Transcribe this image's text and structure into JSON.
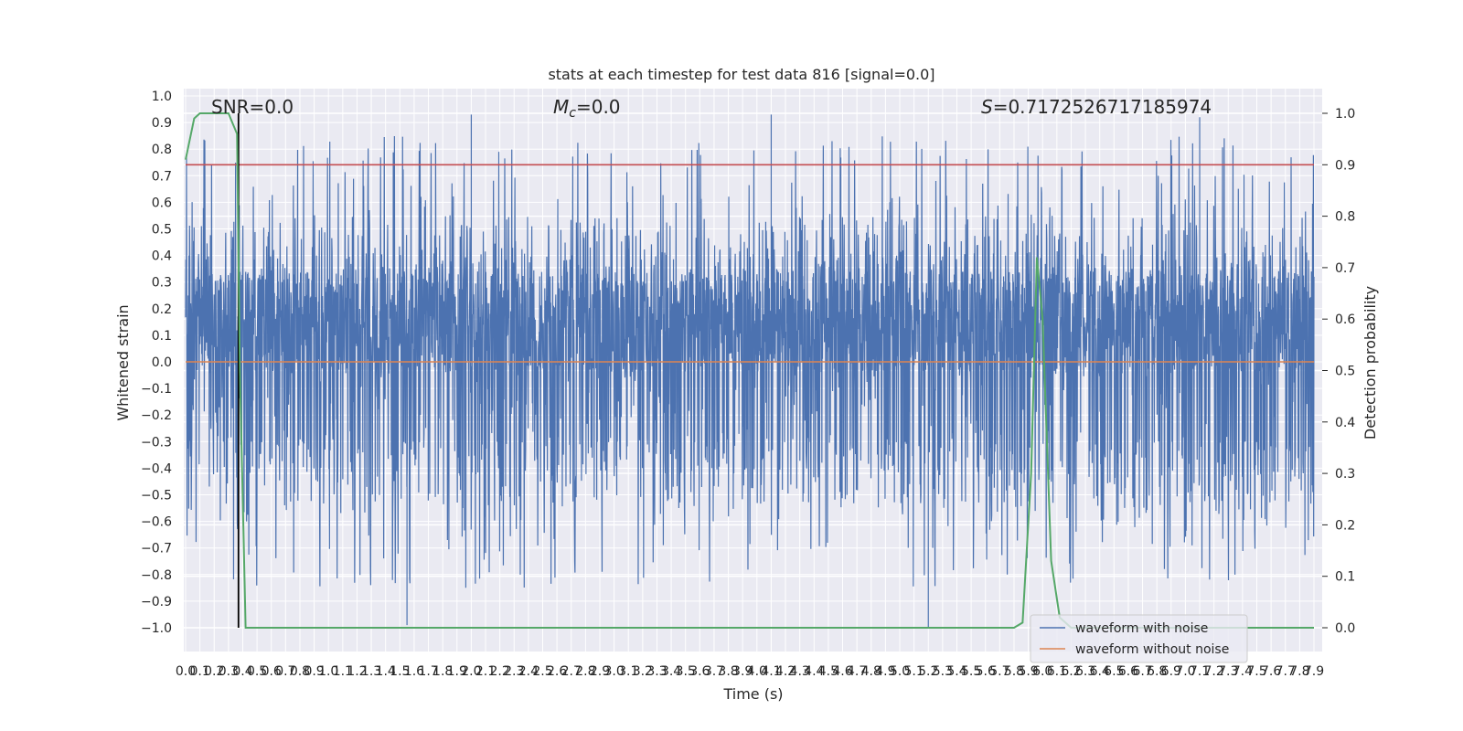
{
  "chart_data": {
    "type": "line",
    "title": "stats at each timestep for test data 816 [signal=0.0]",
    "xlabel": "Time (s)",
    "ylabel": "Whitened strain",
    "y2label": "Detection probability",
    "xlim": [
      0.0,
      7.9
    ],
    "ylim": [
      -1.0,
      1.0
    ],
    "y2lim": [
      0.0,
      1.0
    ],
    "x_ticks": [
      "0.0",
      "0.1",
      "0.2",
      "0.3",
      "0.4",
      "0.5",
      "0.6",
      "0.7",
      "0.8",
      "0.9",
      "1.0",
      "1.1",
      "1.2",
      "1.3",
      "1.4",
      "1.5",
      "1.6",
      "1.7",
      "1.8",
      "1.9",
      "2.0",
      "2.1",
      "2.2",
      "2.3",
      "2.4",
      "2.5",
      "2.6",
      "2.7",
      "2.8",
      "2.9",
      "3.0",
      "3.1",
      "3.2",
      "3.3",
      "3.4",
      "3.5",
      "3.6",
      "3.7",
      "3.8",
      "3.9",
      "4.0",
      "4.1",
      "4.2",
      "4.3",
      "4.4",
      "4.5",
      "4.6",
      "4.7",
      "4.8",
      "4.9",
      "5.0",
      "5.1",
      "5.2",
      "5.3",
      "5.4",
      "5.5",
      "5.6",
      "5.7",
      "5.8",
      "5.9",
      "6.0",
      "6.1",
      "6.2",
      "6.3",
      "6.4",
      "6.5",
      "6.6",
      "6.7",
      "6.8",
      "6.9",
      "7.0",
      "7.1",
      "7.2",
      "7.3",
      "7.4",
      "7.5",
      "7.6",
      "7.7",
      "7.8",
      "7.9"
    ],
    "y_ticks": [
      "1.0",
      "0.9",
      "0.8",
      "0.7",
      "0.6",
      "0.5",
      "0.4",
      "0.3",
      "0.2",
      "0.1",
      "0.0",
      "−0.1",
      "−0.2",
      "−0.3",
      "−0.4",
      "−0.5",
      "−0.6",
      "−0.7",
      "−0.8",
      "−0.9",
      "−1.0"
    ],
    "y2_ticks": [
      "1.0",
      "0.9",
      "0.8",
      "0.7",
      "0.6",
      "0.5",
      "0.4",
      "0.3",
      "0.2",
      "0.1",
      "0.0"
    ],
    "annotations": {
      "snr": "SNR=0.0",
      "mc_symbol": "M",
      "mc_sub": "c",
      "mc_value": "=0.0",
      "s_symbol": "S",
      "s_value": "=0.7172526717185974"
    },
    "legend": {
      "placement": "lower-right",
      "entries": [
        "waveform with noise",
        "waveform without noise"
      ]
    },
    "threshold_probability": 0.9,
    "vertical_marker_time": 0.37,
    "series": [
      {
        "name": "waveform with noise",
        "axis": "left",
        "color": "#4c72b0",
        "kind": "noise",
        "approx_range": [
          -1.0,
          0.93
        ],
        "note_peaks": [
          [
            2.0,
            0.93
          ],
          [
            4.1,
            0.93
          ],
          [
            7.1,
            0.92
          ],
          [
            5.2,
            -1.0
          ],
          [
            1.55,
            -0.99
          ]
        ]
      },
      {
        "name": "waveform without noise",
        "axis": "left",
        "color": "#dd8452",
        "x": [
          0.0,
          7.9
        ],
        "y": [
          0.0,
          0.0
        ]
      },
      {
        "name": "detection probability",
        "axis": "right",
        "color": "#55a868",
        "x": [
          0.0,
          0.06,
          0.1,
          0.2,
          0.3,
          0.36,
          0.38,
          0.42,
          0.46,
          0.5,
          5.8,
          5.86,
          5.92,
          5.96,
          6.0,
          6.06,
          6.12,
          6.2,
          7.9
        ],
        "y": [
          0.91,
          0.99,
          1.0,
          1.0,
          1.0,
          0.96,
          0.5,
          0.0,
          0.0,
          0.0,
          0.0,
          0.01,
          0.3,
          0.72,
          0.6,
          0.13,
          0.02,
          0.0,
          0.0
        ]
      },
      {
        "name": "threshold",
        "axis": "right",
        "color": "#c44e52",
        "x": [
          0.0,
          7.9
        ],
        "y": [
          0.9,
          0.9
        ]
      }
    ],
    "grid": true,
    "background": "#eaeaf2"
  }
}
